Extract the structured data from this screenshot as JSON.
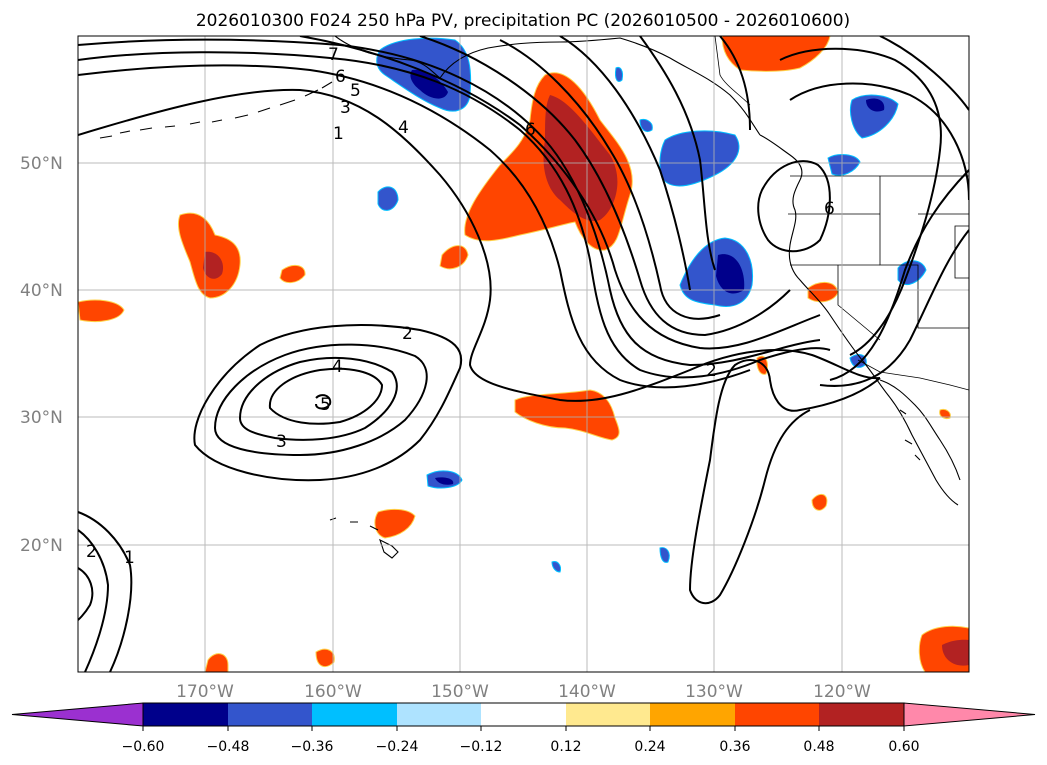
{
  "title": "2026010300 F024 250 hPa PV, precipitation PC (2026010500 - 2026010600)",
  "map": {
    "lon_range": [
      -180,
      -110
    ],
    "lat_range": [
      10,
      60
    ],
    "lat_ticks": [
      "50°N",
      "40°N",
      "30°N",
      "20°N"
    ],
    "lon_ticks": [
      "170°W",
      "160°W",
      "150°W",
      "140°W",
      "130°W",
      "120°W"
    ],
    "pv_contour_labels": [
      "7",
      "6",
      "5",
      "3",
      "1",
      "4",
      "6",
      "6",
      "2",
      "4",
      "5",
      "3",
      "2",
      "2",
      "1"
    ]
  },
  "colorbar": {
    "ticks": [
      "−0.60",
      "−0.48",
      "−0.36",
      "−0.24",
      "−0.12",
      "0.12",
      "0.24",
      "0.36",
      "0.48",
      "0.60"
    ],
    "colors": [
      "#9b30d0",
      "#00008b",
      "#3355cc",
      "#00bfff",
      "#aee3ff",
      "#ffffff",
      "#ffe98f",
      "#ffa500",
      "#ff4500",
      "#b22222",
      "#ff88aa"
    ]
  }
}
